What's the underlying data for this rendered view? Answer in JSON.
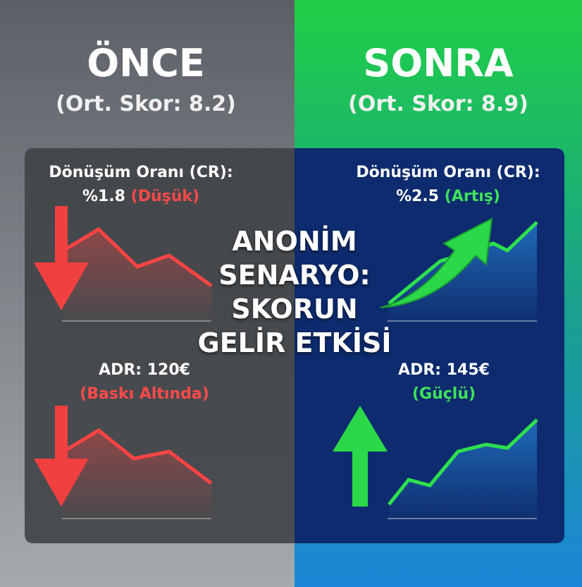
{
  "before": {
    "title": "ÖNCE",
    "subtitle": "(Ort. Skor: 8.2)",
    "metrics": [
      {
        "label": "Dönüşüm Oranı (CR):",
        "value": "%1.8",
        "status": "(Düşük)"
      },
      {
        "label": "ADR: 120€",
        "status": "(Baskı Altında)"
      }
    ]
  },
  "after": {
    "title": "SONRA",
    "subtitle": "(Ort. Skor: 8.9)",
    "metrics": [
      {
        "label": "Dönüşüm Oranı (CR):",
        "value": "%2.5",
        "status": "(Artış)"
      },
      {
        "label": "ADR: 145€",
        "status": "(Güçlü)"
      }
    ]
  },
  "center_title": [
    "ANONİM",
    "SENARYO:",
    "SKORUN",
    "GELİR ETKİSİ"
  ]
}
